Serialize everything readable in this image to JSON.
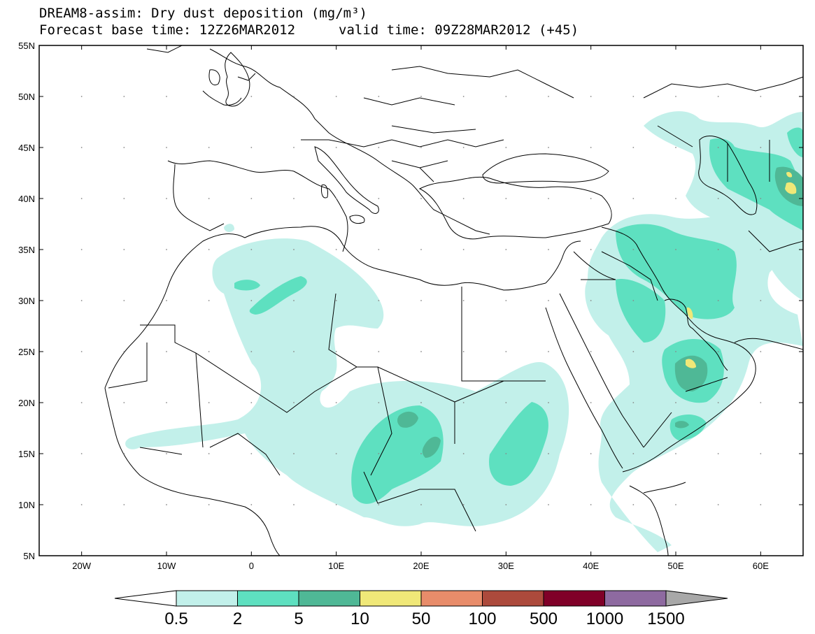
{
  "title": {
    "line1": "DREAM8-assim: Dry dust deposition (mg/m³)",
    "base": "Forecast base time: 12Z26MAR2012",
    "valid": "valid time: 09Z28MAR2012 (+45)"
  },
  "axes": {
    "lon_min": -25,
    "lon_max": 65,
    "lat_min": 5,
    "lat_max": 55,
    "lon_ticks": [
      {
        "v": -20,
        "label": "20W"
      },
      {
        "v": -10,
        "label": "10W"
      },
      {
        "v": 0,
        "label": "0"
      },
      {
        "v": 10,
        "label": "10E"
      },
      {
        "v": 20,
        "label": "20E"
      },
      {
        "v": 30,
        "label": "30E"
      },
      {
        "v": 40,
        "label": "40E"
      },
      {
        "v": 50,
        "label": "50E"
      },
      {
        "v": 60,
        "label": "60E"
      }
    ],
    "lat_ticks": [
      {
        "v": 55,
        "label": "55N"
      },
      {
        "v": 50,
        "label": "50N"
      },
      {
        "v": 45,
        "label": "45N"
      },
      {
        "v": 40,
        "label": "40N"
      },
      {
        "v": 35,
        "label": "35N"
      },
      {
        "v": 30,
        "label": "30N"
      },
      {
        "v": 25,
        "label": "25N"
      },
      {
        "v": 20,
        "label": "20N"
      },
      {
        "v": 15,
        "label": "15N"
      },
      {
        "v": 10,
        "label": "10N"
      },
      {
        "v": 5,
        "label": "5N"
      }
    ]
  },
  "colorbar": {
    "labels": [
      "0.5",
      "2",
      "5",
      "10",
      "50",
      "100",
      "500",
      "1000",
      "1500"
    ],
    "colors": [
      "#ffffff",
      "#c2f0ea",
      "#5ee0c0",
      "#4fb896",
      "#f0e878",
      "#e88c6a",
      "#ac4a3c",
      "#800028",
      "#8e6aa0",
      "#a8a8a8"
    ]
  },
  "colors": {
    "c1": "#c2f0ea",
    "c2": "#5ee0c0",
    "c3": "#4fb896",
    "c4": "#f0e878"
  }
}
